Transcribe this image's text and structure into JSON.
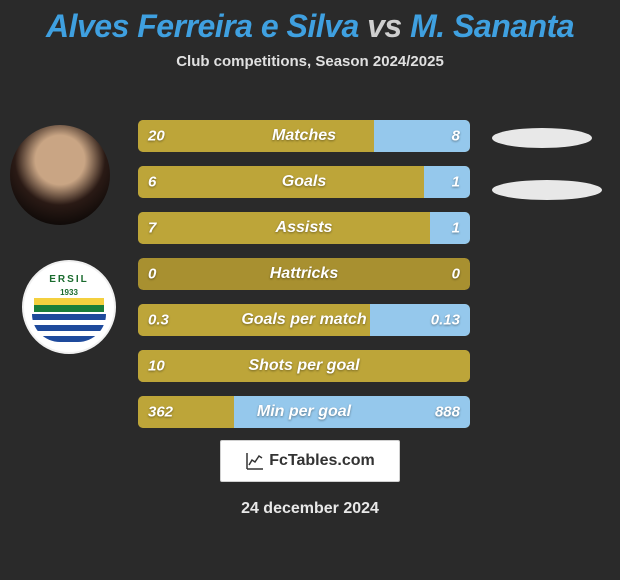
{
  "title": {
    "part1": "Alves Ferreira e Silva",
    "vs": " vs ",
    "part2": "M. Sananta",
    "color1": "#3fa0e0",
    "color2": "#3fa0e0"
  },
  "subtitle": "Club competitions, Season 2024/2025",
  "badge": {
    "text": "ERSIL",
    "year": "1933"
  },
  "bars": {
    "track_color": "#a89030",
    "left_color": "#bda539",
    "right_color": "#95c8ec",
    "items": [
      {
        "label": "Matches",
        "left": "20",
        "right": "8",
        "left_pct": 71,
        "right_pct": 29
      },
      {
        "label": "Goals",
        "left": "6",
        "right": "1",
        "left_pct": 86,
        "right_pct": 14
      },
      {
        "label": "Assists",
        "left": "7",
        "right": "1",
        "left_pct": 88,
        "right_pct": 12
      },
      {
        "label": "Hattricks",
        "left": "0",
        "right": "0",
        "left_pct": 0,
        "right_pct": 0
      },
      {
        "label": "Goals per match",
        "left": "0.3",
        "right": "0.13",
        "left_pct": 70,
        "right_pct": 30
      },
      {
        "label": "Shots per goal",
        "left": "10",
        "right": "",
        "left_pct": 100,
        "right_pct": 0
      },
      {
        "label": "Min per goal",
        "left": "362",
        "right": "888",
        "left_pct": 29,
        "right_pct": 71
      }
    ]
  },
  "brand": "FcTables.com",
  "date": "24 december 2024",
  "colors": {
    "bg": "#2a2a2a",
    "text": "#ffffff"
  }
}
